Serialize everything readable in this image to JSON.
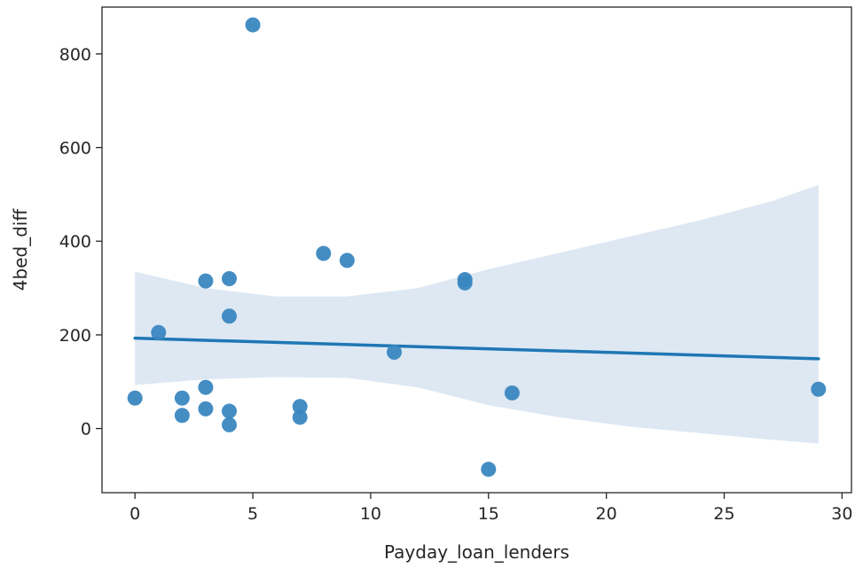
{
  "chart_data": {
    "type": "scatter",
    "title": "",
    "xlabel": "Payday_loan_lenders",
    "ylabel": "4bed_diff",
    "xlim": [
      -1.4,
      30.4
    ],
    "ylim": [
      -137,
      900
    ],
    "xticks": [
      0,
      5,
      10,
      15,
      20,
      25,
      30
    ],
    "yticks": [
      0,
      200,
      400,
      600,
      800
    ],
    "grid": false,
    "point_color": "#3a87c0",
    "line_color": "#1f77b4",
    "band_color": "#dde8f3",
    "points": [
      {
        "x": 0,
        "y": 65
      },
      {
        "x": 1,
        "y": 205
      },
      {
        "x": 2,
        "y": 65
      },
      {
        "x": 2,
        "y": 28
      },
      {
        "x": 3,
        "y": 315
      },
      {
        "x": 3,
        "y": 88
      },
      {
        "x": 3,
        "y": 42
      },
      {
        "x": 4,
        "y": 320
      },
      {
        "x": 4,
        "y": 240
      },
      {
        "x": 4,
        "y": 37
      },
      {
        "x": 4,
        "y": 8
      },
      {
        "x": 5,
        "y": 862
      },
      {
        "x": 7,
        "y": 47
      },
      {
        "x": 7,
        "y": 24
      },
      {
        "x": 8,
        "y": 374
      },
      {
        "x": 9,
        "y": 359
      },
      {
        "x": 11,
        "y": 163
      },
      {
        "x": 14,
        "y": 318
      },
      {
        "x": 14,
        "y": 311
      },
      {
        "x": 15,
        "y": -87
      },
      {
        "x": 16,
        "y": 76
      },
      {
        "x": 29,
        "y": 84
      }
    ],
    "regression_line": [
      {
        "x": 0,
        "y": 193
      },
      {
        "x": 29,
        "y": 149
      }
    ],
    "confidence_band": {
      "x": [
        0,
        3,
        6,
        9,
        12,
        15,
        18,
        21,
        24,
        27,
        29
      ],
      "upper": [
        335,
        300,
        282,
        282,
        300,
        340,
        375,
        410,
        445,
        485,
        520
      ],
      "lower": [
        93,
        105,
        110,
        108,
        88,
        50,
        24,
        4,
        -10,
        -24,
        -32
      ]
    }
  }
}
